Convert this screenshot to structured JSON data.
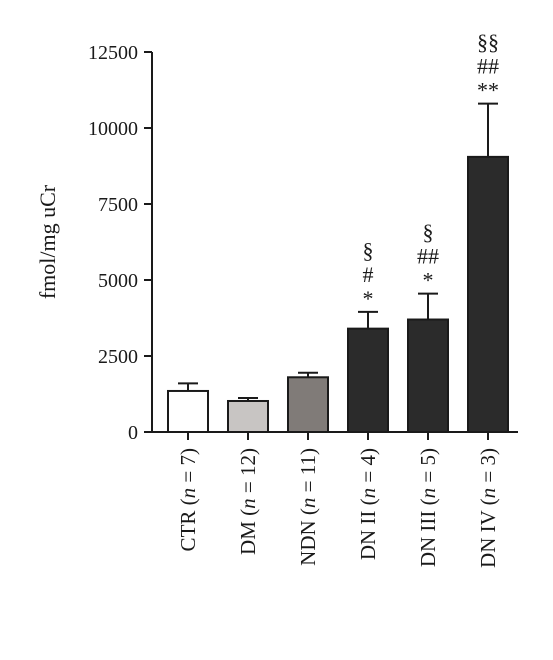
{
  "chart_data": {
    "type": "bar",
    "title": "",
    "xlabel": "",
    "ylabel": "fmol/mg uCr",
    "ylim": [
      0,
      12500
    ],
    "yticks": [
      0,
      2500,
      5000,
      7500,
      10000,
      12500
    ],
    "ytick_labels": [
      "0",
      "2500",
      "5000",
      "7500",
      "10000",
      "12500"
    ],
    "grid": false,
    "legend": "none",
    "categories": [
      {
        "parts": [
          "CTR (",
          "n",
          " = 7)"
        ]
      },
      {
        "parts": [
          "DM (",
          "n",
          " = 12)"
        ]
      },
      {
        "parts": [
          "NDN (",
          "n",
          " = 11)"
        ]
      },
      {
        "parts": [
          "DN II (",
          "n",
          " = 4)"
        ]
      },
      {
        "parts": [
          "DN III (",
          "n",
          " = 5)"
        ]
      },
      {
        "parts": [
          "DN IV (",
          "n",
          " = 3)"
        ]
      }
    ],
    "values": [
      1350,
      1020,
      1800,
      3400,
      3700,
      9050
    ],
    "errors": [
      250,
      100,
      150,
      550,
      850,
      1750
    ],
    "bar_colors": [
      "#ffffff",
      "#c8c5c3",
      "#807b78",
      "#2b2b2b",
      "#2b2b2b",
      "#2b2b2b"
    ],
    "significance": [
      [],
      [],
      [],
      [
        "§",
        "#",
        "*"
      ],
      [
        "§",
        "##",
        "*"
      ],
      [
        "§§",
        "##",
        "**"
      ]
    ]
  }
}
